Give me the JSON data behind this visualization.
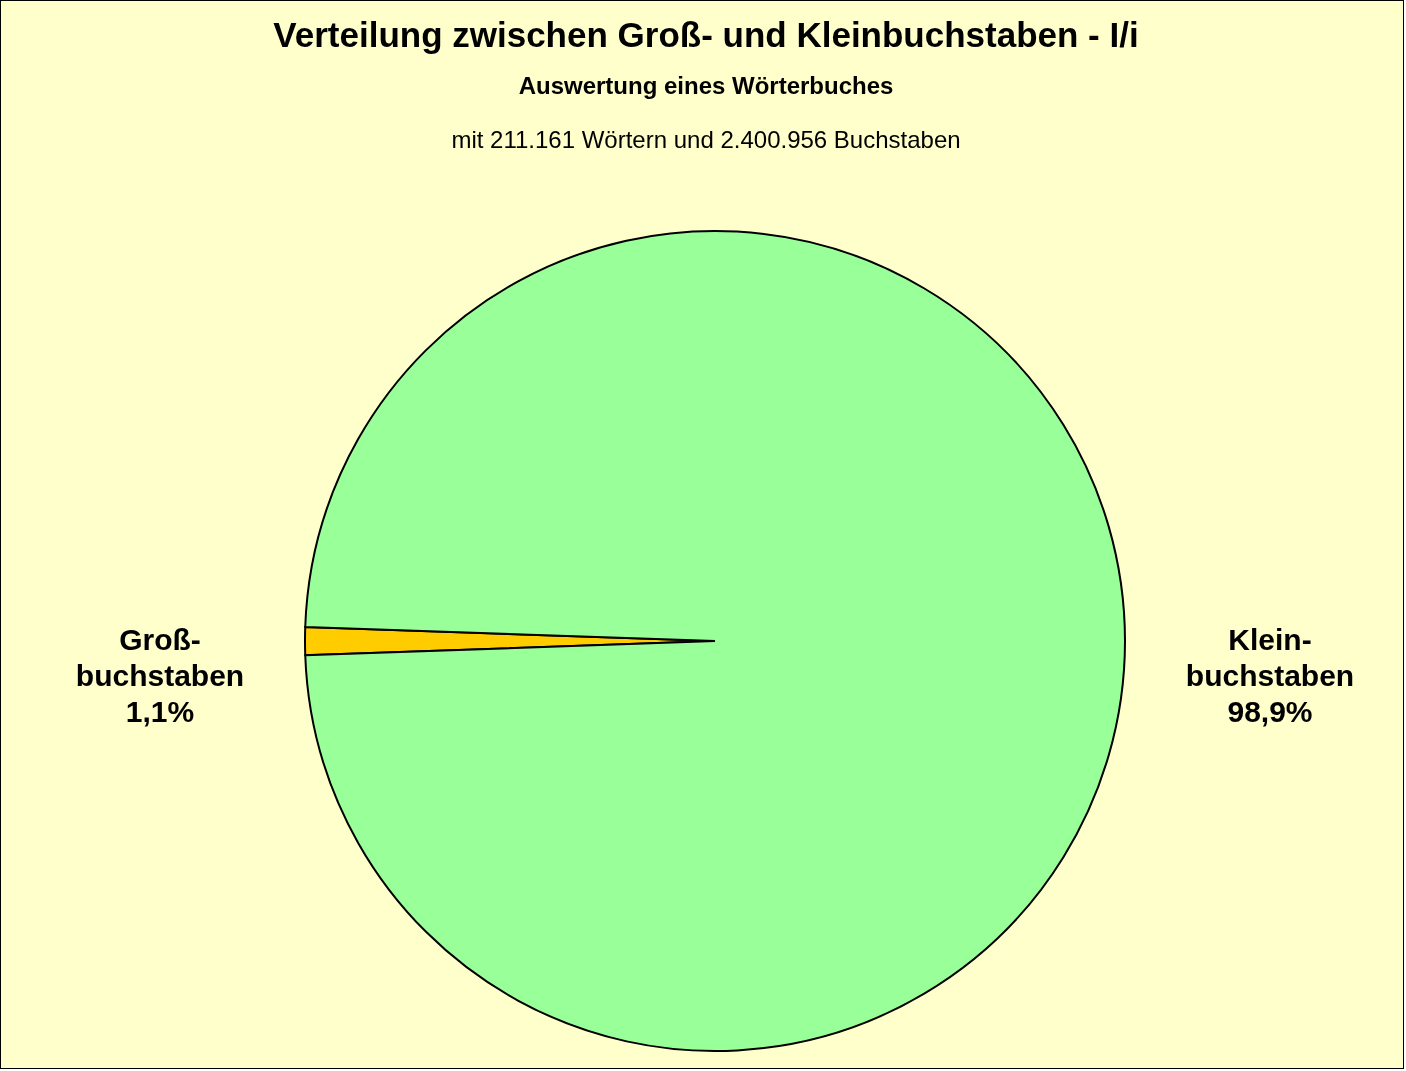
{
  "chart_data": {
    "type": "pie",
    "title": "Verteilung zwischen Groß- und  Kleinbuchstaben - I/i",
    "subtitle": "Auswertung eines Wörterbuches",
    "annotations": [
      "mit 211.161 Wörtern und 2.400.956 Buchstaben"
    ],
    "categories": [
      "Groß-buchstaben",
      "Klein-buchstaben"
    ],
    "values": [
      1.1,
      98.9
    ],
    "colors": [
      "#ffcc00",
      "#99ff99"
    ],
    "value_labels": [
      "1,1%",
      "98,9%"
    ],
    "legend": false
  }
}
